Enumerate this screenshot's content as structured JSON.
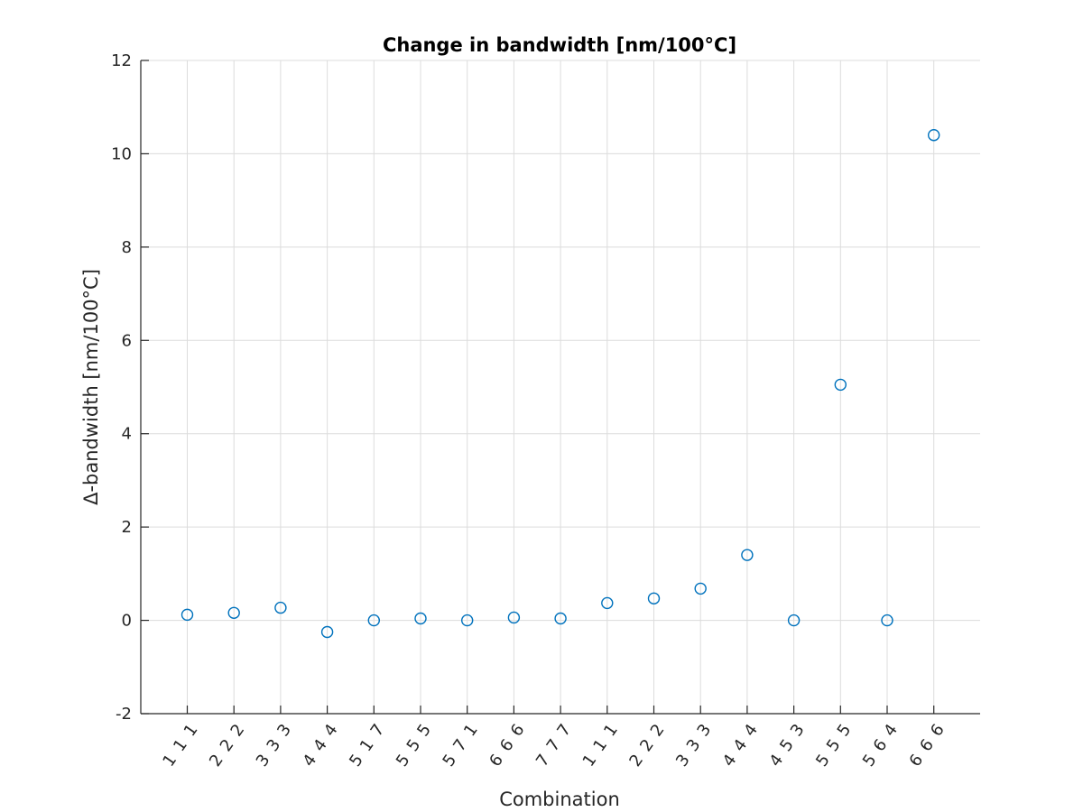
{
  "chart_data": {
    "type": "scatter",
    "title": "Change in bandwidth [nm/100°C]",
    "xlabel": "Combination",
    "ylabel": "Δ-bandwidth [nm/100°C]",
    "ylim": [
      -2,
      12
    ],
    "yticks": [
      "-2",
      "0",
      "2",
      "4",
      "6",
      "8",
      "10",
      "12"
    ],
    "grid": true,
    "categories": [
      "1 1 1",
      "2 2 2",
      "3 3 3",
      "4 4 4",
      "5 1 7",
      "5 5 5",
      "5 7 1",
      "6 6 6",
      "7 7 7",
      "1 1 1",
      "2 2 2",
      "3 3 3",
      "4 4 4",
      "4 5 3",
      "5 5 5",
      "5 6 4",
      "6 6 6"
    ],
    "values": [
      0.12,
      0.16,
      0.27,
      -0.25,
      0.0,
      0.04,
      0.0,
      0.06,
      0.04,
      0.37,
      0.47,
      0.68,
      1.4,
      0.0,
      5.05,
      0.0,
      10.4
    ],
    "marker": "circle",
    "series_color": "#0072BD"
  }
}
